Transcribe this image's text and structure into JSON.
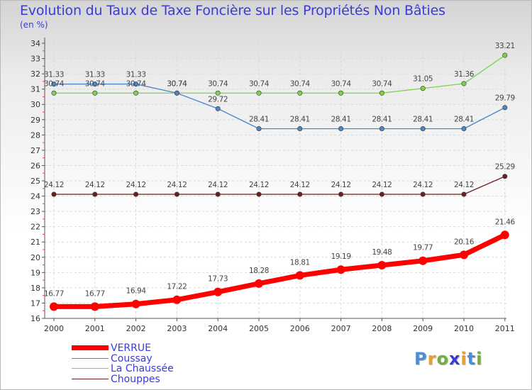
{
  "title": "Evolution du Taux de Taxe Foncière sur les Propriétés Non Bâties",
  "unit_label": "(en %)",
  "logo": {
    "text": "Proxiti",
    "letters": [
      "P",
      "r",
      "o",
      "x",
      "i",
      "t",
      "i"
    ],
    "colors": [
      "#4a8fd9",
      "#e9a02a",
      "#6fb23b",
      "#3b3bd9",
      "#e9a02a",
      "#4a8fd9",
      "#6fb23b"
    ]
  },
  "chart_data": {
    "type": "line",
    "title": "Evolution du Taux de Taxe Foncière sur les Propriétés Non Bâties",
    "ylabel": "(en %)",
    "xlabel": "",
    "categories": [
      "2000",
      "2001",
      "2002",
      "2003",
      "2004",
      "2005",
      "2006",
      "2007",
      "2008",
      "2009",
      "2010",
      "2011"
    ],
    "ylim": [
      16,
      34
    ],
    "yticks": [
      16,
      17,
      18,
      19,
      20,
      21,
      22,
      23,
      24,
      25,
      26,
      27,
      28,
      29,
      30,
      31,
      32,
      33,
      34
    ],
    "grid": true,
    "legend_position": "bottom-left",
    "series": [
      {
        "name": "VERRUE",
        "color": "#ff0000",
        "values": [
          16.77,
          16.77,
          16.94,
          17.22,
          17.73,
          18.28,
          18.81,
          19.19,
          19.48,
          19.77,
          20.16,
          21.46
        ],
        "labels": [
          "16.77",
          "16.77",
          "16.94",
          "17.22",
          "17.73",
          "18.28",
          "18.81",
          "19.19",
          "19.48",
          "19.77",
          "20.16",
          "21.46"
        ]
      },
      {
        "name": "Coussay",
        "color": "#4b86c6",
        "values": [
          31.33,
          31.33,
          31.33,
          30.74,
          29.72,
          28.41,
          28.41,
          28.41,
          28.41,
          28.41,
          28.41,
          29.79
        ],
        "labels": [
          "31.33",
          "31.33",
          "31.33",
          "30.74",
          "29.72",
          "28.41",
          "28.41",
          "28.41",
          "28.41",
          "28.41",
          "28.41",
          "29.79"
        ]
      },
      {
        "name": "La Chaussée",
        "color": "#7ad44a",
        "values": [
          30.74,
          30.74,
          30.74,
          30.74,
          30.74,
          30.74,
          30.74,
          30.74,
          30.74,
          31.05,
          31.36,
          33.21
        ],
        "labels": [
          "30.74",
          "30.74",
          "30.74",
          "30.74",
          "30.74",
          "30.74",
          "30.74",
          "30.74",
          "30.74",
          "31.05",
          "31.36",
          "33.21"
        ]
      },
      {
        "name": "Chouppes",
        "color": "#6b1f1f",
        "values": [
          24.12,
          24.12,
          24.12,
          24.12,
          24.12,
          24.12,
          24.12,
          24.12,
          24.12,
          24.12,
          24.12,
          25.29
        ],
        "labels": [
          "24.12",
          "24.12",
          "24.12",
          "24.12",
          "24.12",
          "24.12",
          "24.12",
          "24.12",
          "24.12",
          "24.12",
          "24.12",
          "25.29"
        ]
      }
    ]
  }
}
